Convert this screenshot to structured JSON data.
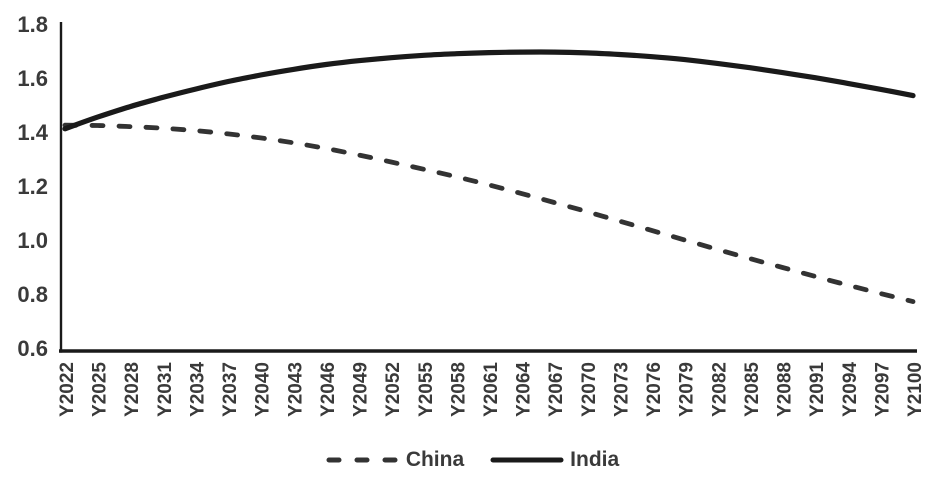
{
  "chart_data": {
    "type": "line",
    "title": "",
    "xlabel": "",
    "ylabel": "",
    "grid": false,
    "legend_position": "bottom",
    "ylim": [
      0.6,
      1.8
    ],
    "y_tick_labels": [
      "0.6",
      "0.8",
      "1.0",
      "1.2",
      "1.4",
      "1.6",
      "1.8"
    ],
    "categories": [
      "Y2022",
      "Y2025",
      "Y2028",
      "Y2031",
      "Y2034",
      "Y2037",
      "Y2040",
      "Y2043",
      "Y2046",
      "Y2049",
      "Y2052",
      "Y2055",
      "Y2058",
      "Y2061",
      "Y2064",
      "Y2067",
      "Y2070",
      "Y2073",
      "Y2076",
      "Y2079",
      "Y2082",
      "Y2085",
      "Y2088",
      "Y2091",
      "Y2094",
      "Y2097",
      "Y2100"
    ],
    "series": [
      {
        "name": "China",
        "style": "dashed",
        "color": "#333333",
        "values": [
          1.425,
          1.424,
          1.42,
          1.414,
          1.405,
          1.393,
          1.378,
          1.36,
          1.339,
          1.315,
          1.289,
          1.262,
          1.234,
          1.204,
          1.172,
          1.139,
          1.105,
          1.07,
          1.035,
          1.0,
          0.965,
          0.931,
          0.898,
          0.865,
          0.833,
          0.802,
          0.772
        ]
      },
      {
        "name": "India",
        "style": "solid",
        "color": "#1a1a1a",
        "values": [
          1.412,
          1.455,
          1.494,
          1.528,
          1.559,
          1.587,
          1.611,
          1.632,
          1.65,
          1.664,
          1.675,
          1.684,
          1.69,
          1.694,
          1.696,
          1.696,
          1.693,
          1.687,
          1.679,
          1.668,
          1.654,
          1.638,
          1.62,
          1.601,
          1.58,
          1.558,
          1.535
        ]
      }
    ],
    "axis_color": "#1a1a1a",
    "tick_text_color": "#3a3a3a"
  }
}
